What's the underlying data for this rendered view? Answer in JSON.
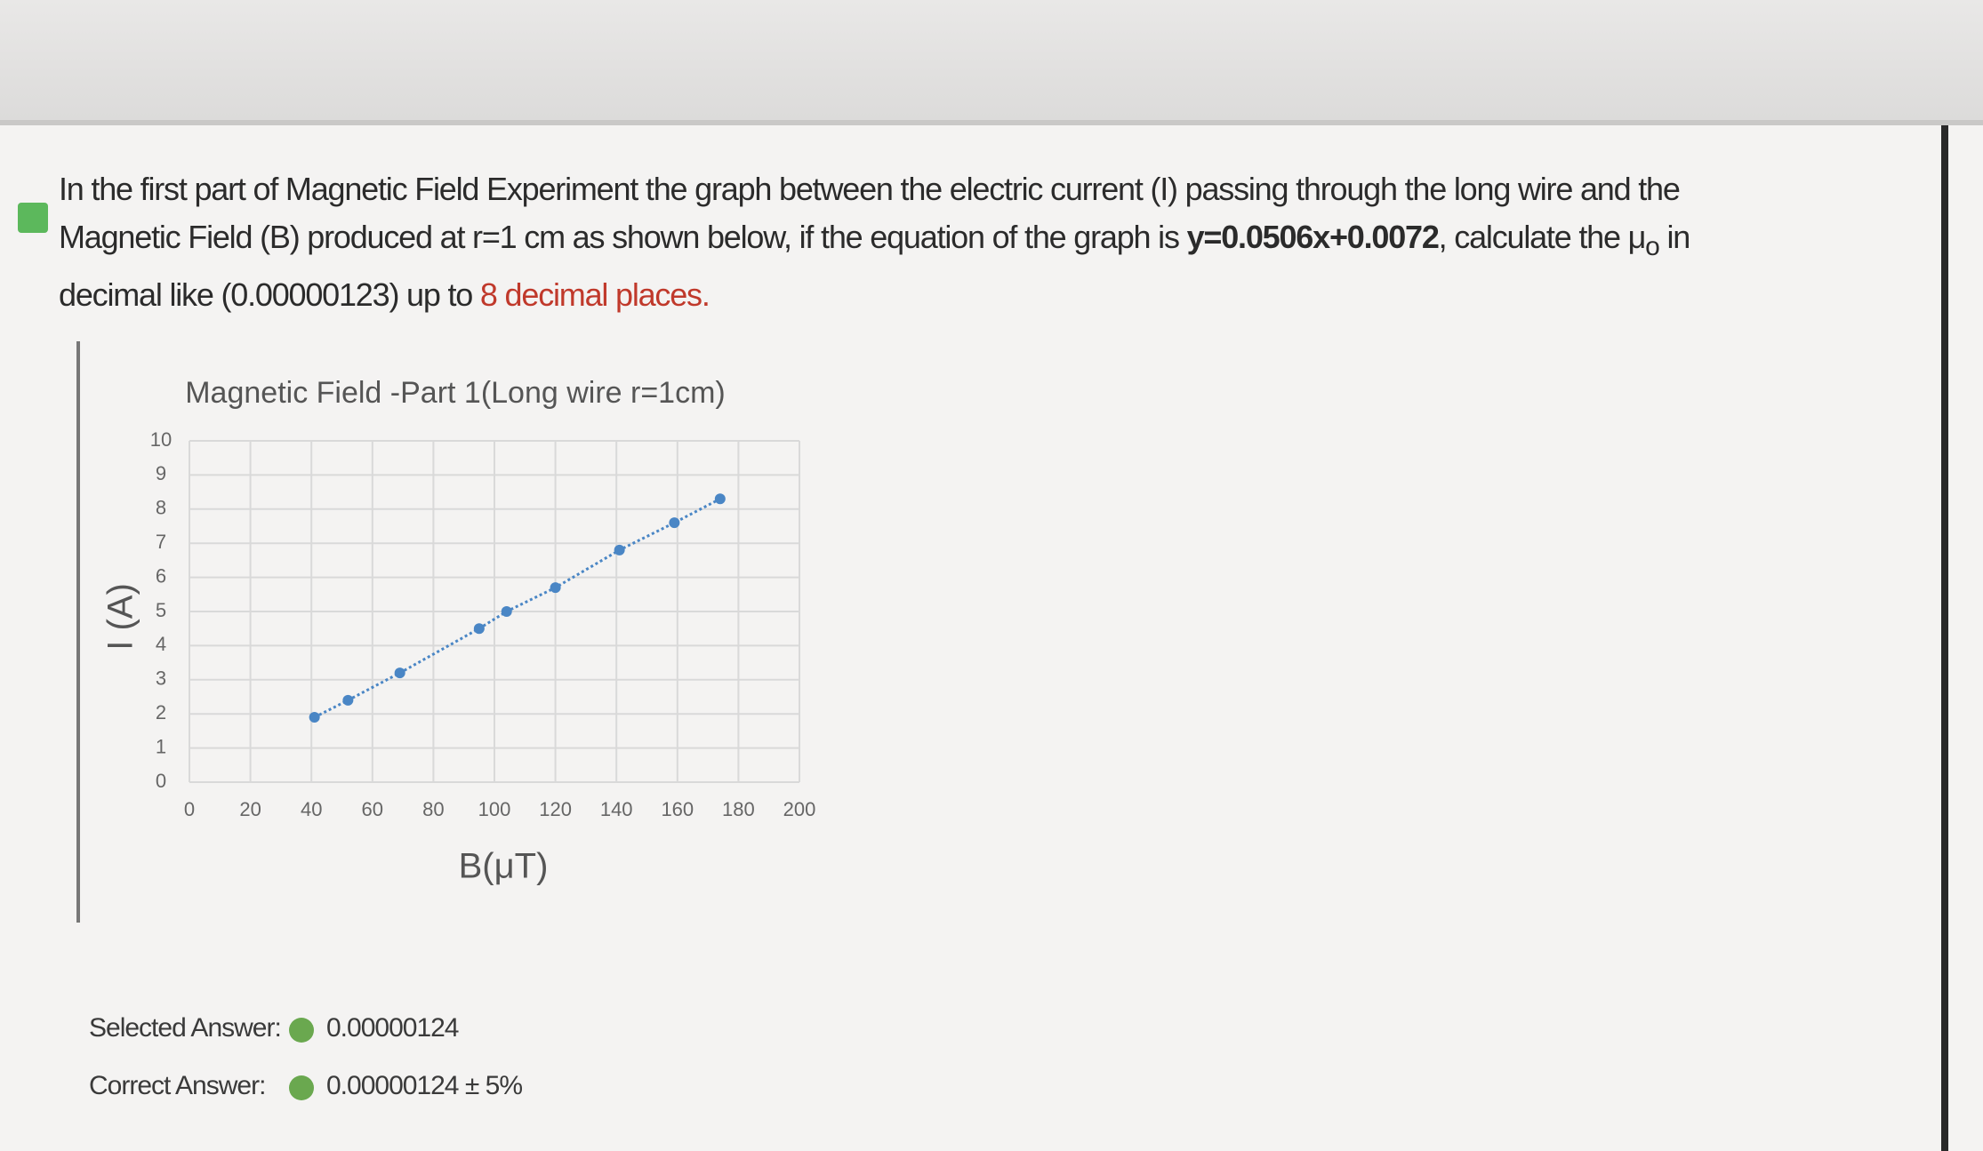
{
  "question": {
    "segments": [
      "In the first part of Magnetic Field Experiment the graph between the electric current (I) passing through the long wire and the Magnetic Field (B) produced at r=1 cm as shown below, if the equation of the graph is ",
      "y=0.0506x+0.0072",
      ", calculate the ",
      "μ",
      "o",
      " in decimal like (0.00000123) up to ",
      "8 decimal places."
    ]
  },
  "chart_data": {
    "type": "scatter",
    "title": "Magnetic Field -Part 1(Long wire r=1cm)",
    "x_label": "B(μT)",
    "y_label": "I (A)",
    "x": [
      41,
      52,
      69,
      95,
      104,
      120,
      141,
      159,
      174
    ],
    "values": [
      1.9,
      2.4,
      3.2,
      4.5,
      5.0,
      5.7,
      6.8,
      7.6,
      8.3
    ],
    "color": "#4a86c5",
    "xlim": [
      0,
      200
    ],
    "xticks": [
      0,
      20,
      40,
      60,
      80,
      100,
      120,
      140,
      160,
      180,
      200
    ],
    "ylim": [
      0,
      10
    ],
    "yticks": [
      0,
      1,
      2,
      3,
      4,
      5,
      6,
      7,
      8,
      9,
      10
    ],
    "grid": true
  },
  "answers": {
    "selected_label": "Selected Answer:",
    "selected_value": "0.00000124",
    "correct_label": "Correct Answer:",
    "correct_value": "0.00000124 ± 5%"
  }
}
